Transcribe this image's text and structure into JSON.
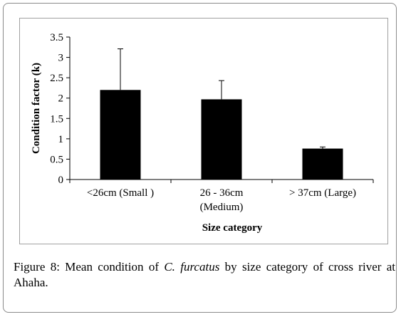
{
  "chart_data": {
    "type": "bar",
    "categories": [
      [
        "<26cm (Small )"
      ],
      [
        "26 - 36cm",
        "(Medium)"
      ],
      [
        "> 37cm (Large)"
      ]
    ],
    "values": [
      2.2,
      1.97,
      0.76
    ],
    "error_upper": [
      3.21,
      2.43,
      0.8
    ],
    "xlabel": "Size category",
    "ylabel": "Condition factor (k)",
    "ylim": [
      0,
      3.5
    ],
    "yticks": [
      0,
      0.5,
      1,
      1.5,
      2,
      2.5,
      3,
      3.5
    ],
    "ytick_labels": [
      "0",
      "0.5",
      "1",
      "1.5",
      "2",
      "2.5",
      "3",
      "3.5"
    ],
    "bar_color": "#000000",
    "grid": false,
    "legend": "none"
  },
  "caption": {
    "label": "Figure 8:",
    "pre": " Mean condition of ",
    "species": "C. furcatus",
    "post": " by size category of cross river at Ahaha."
  }
}
